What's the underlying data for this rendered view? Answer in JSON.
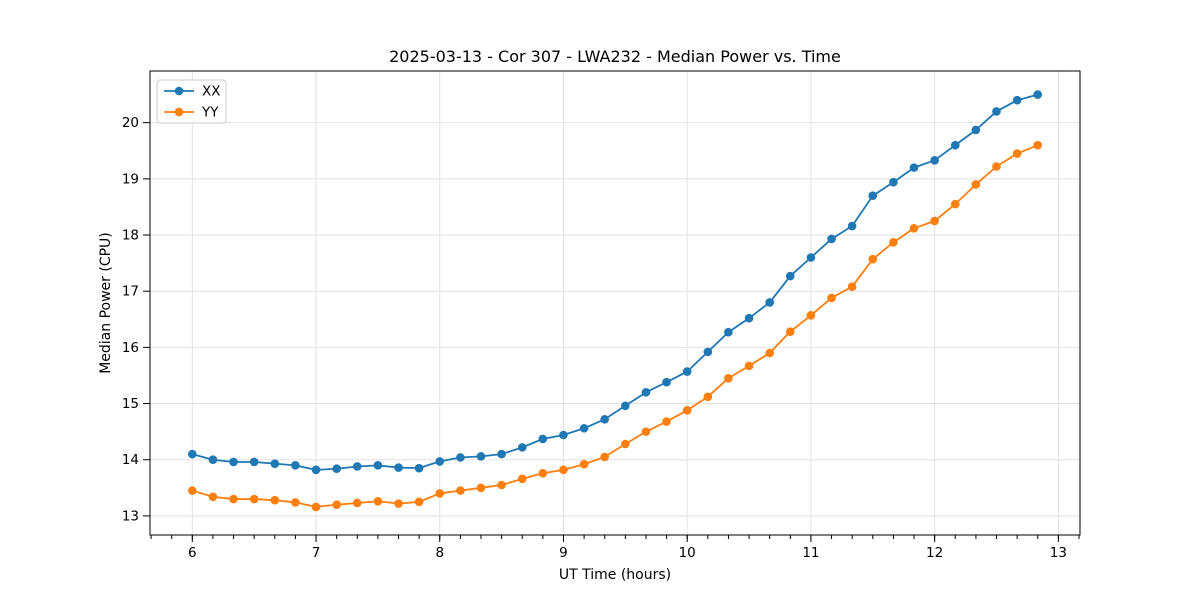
{
  "figure": {
    "background": "#ffffff"
  },
  "chart_data": {
    "type": "line",
    "title": "2025-03-13 - Cor 307 - LWA232 - Median Power vs. Time",
    "xlabel": "UT Time (hours)",
    "ylabel": "Median Power (CPU)",
    "xlim": [
      5.658,
      13.175
    ],
    "ylim": [
      12.66,
      20.92
    ],
    "xticks": [
      6,
      7,
      8,
      9,
      10,
      11,
      12,
      13
    ],
    "yticks": [
      13,
      14,
      15,
      16,
      17,
      18,
      19,
      20
    ],
    "x_minor_step": 0.16667,
    "grid": true,
    "grid_color": "#e2e2e2",
    "legend_position": "upper-left",
    "x": [
      6.0,
      6.167,
      6.333,
      6.5,
      6.667,
      6.833,
      7.0,
      7.167,
      7.333,
      7.5,
      7.667,
      7.833,
      8.0,
      8.167,
      8.333,
      8.5,
      8.667,
      8.833,
      9.0,
      9.167,
      9.333,
      9.5,
      9.667,
      9.833,
      10.0,
      10.167,
      10.333,
      10.5,
      10.667,
      10.833,
      11.0,
      11.167,
      11.333,
      11.5,
      11.667,
      11.833,
      12.0,
      12.167,
      12.333,
      12.5,
      12.667,
      12.833
    ],
    "series": [
      {
        "name": "XX",
        "color": "#1f77b4",
        "marker": "circle",
        "values": [
          14.1,
          14.0,
          13.96,
          13.96,
          13.93,
          13.9,
          13.82,
          13.84,
          13.88,
          13.9,
          13.86,
          13.85,
          13.97,
          14.04,
          14.06,
          14.1,
          14.22,
          14.37,
          14.44,
          14.56,
          14.72,
          14.96,
          15.2,
          15.38,
          15.57,
          15.92,
          16.27,
          16.52,
          16.8,
          17.27,
          17.6,
          17.93,
          18.16,
          18.7,
          18.94,
          19.2,
          19.33,
          19.6,
          19.87,
          20.2,
          20.4,
          20.5
        ]
      },
      {
        "name": "YY",
        "color": "#ff7f0e",
        "marker": "circle",
        "values": [
          13.45,
          13.34,
          13.3,
          13.3,
          13.28,
          13.24,
          13.16,
          13.2,
          13.23,
          13.26,
          13.22,
          13.25,
          13.4,
          13.45,
          13.5,
          13.55,
          13.66,
          13.76,
          13.82,
          13.92,
          14.05,
          14.28,
          14.5,
          14.68,
          14.88,
          15.12,
          15.45,
          15.67,
          15.9,
          16.28,
          16.57,
          16.88,
          17.08,
          17.57,
          17.87,
          18.12,
          18.25,
          18.55,
          18.9,
          19.22,
          19.45,
          19.6
        ]
      }
    ]
  }
}
